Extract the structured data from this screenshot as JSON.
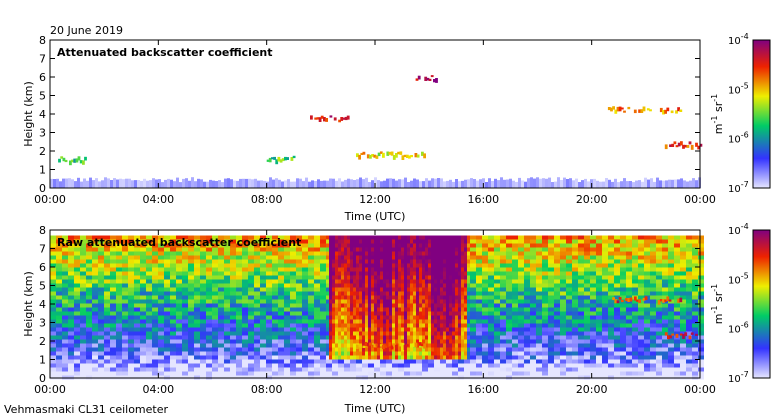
{
  "date_label": "20 June 2019",
  "instrument_label": "Vehmasmaki CL31 ceilometer",
  "colorbar": {
    "tick_labels": [
      "10",
      "10",
      "10",
      "10"
    ],
    "tick_exponents": [
      "-4",
      "-5",
      "-6",
      "-7"
    ],
    "label_base_1": "m",
    "label_exp_1": "-1",
    "label_base_2": " sr",
    "label_exp_2": "-1",
    "colors": [
      "#e6e6ff",
      "#3333ff",
      "#00cc66",
      "#eeee00",
      "#ee2200",
      "#800080"
    ]
  },
  "chart_data": [
    {
      "type": "heatmap",
      "title": "Attenuated backscatter coefficient",
      "xlabel": "Time (UTC)",
      "ylabel": "Height (km)",
      "xticks": [
        "00:00",
        "04:00",
        "08:00",
        "12:00",
        "16:00",
        "20:00",
        "00:00"
      ],
      "yticks": [
        "0",
        "1",
        "2",
        "3",
        "4",
        "5",
        "6",
        "7",
        "8"
      ],
      "xlim_hours": [
        0,
        24
      ],
      "ylim_km": [
        0,
        8
      ],
      "colorscale_range": [
        1e-07,
        0.0001
      ],
      "features": [
        {
          "name": "boundary layer",
          "t_start": 0,
          "t_end": 24,
          "top_km": 0.45,
          "log_value": -6.8
        },
        {
          "name": "cloud",
          "t_start": 0.3,
          "t_end": 1.4,
          "height_km": 1.5,
          "log_value": -5.8
        },
        {
          "name": "cloud",
          "t_start": 8.0,
          "t_end": 9.1,
          "height_km": 1.55,
          "log_value": -5.6
        },
        {
          "name": "cloud",
          "t_start": 11.3,
          "t_end": 13.8,
          "height_km": 1.75,
          "log_value": -5.2
        },
        {
          "name": "cloud",
          "t_start": 20.3,
          "t_end": 20.4,
          "height_km": 1.9,
          "log_value": -5.9
        },
        {
          "name": "cloud",
          "t_start": 20.6,
          "t_end": 23.3,
          "height_km": 4.2,
          "log_value": -4.8
        },
        {
          "name": "cloud",
          "t_start": 22.7,
          "t_end": 24.0,
          "height_km": 2.3,
          "log_value": -4.6
        },
        {
          "name": "cloud",
          "t_start": 13.5,
          "t_end": 14.3,
          "height_km": 5.9,
          "log_value": -4.2
        },
        {
          "name": "cloud",
          "t_start": 9.6,
          "t_end": 11.0,
          "height_km": 3.7,
          "log_value": -4.5
        }
      ]
    },
    {
      "type": "heatmap",
      "title": "Raw attenuated backscatter coefficient",
      "xlabel": "Time (UTC)",
      "ylabel": "Height (km)",
      "xticks": [
        "00:00",
        "04:00",
        "08:00",
        "12:00",
        "16:00",
        "20:00",
        "00:00"
      ],
      "yticks": [
        "0",
        "1",
        "2",
        "3",
        "4",
        "5",
        "6",
        "7",
        "8"
      ],
      "xlim_hours": [
        0,
        24
      ],
      "ylim_km": [
        0,
        8
      ],
      "colorscale_range": [
        1e-07,
        0.0001
      ],
      "features": [
        {
          "name": "noise gradient",
          "t_start": 0,
          "t_end": 24,
          "top_km": 7.7,
          "log_value": -5.5
        },
        {
          "name": "solar noise",
          "t_start": 10.3,
          "t_end": 15.3,
          "top_km": 7.7,
          "log_value": -4.5
        },
        {
          "name": "cloud",
          "t_start": 11.3,
          "t_end": 13.8,
          "height_km": 1.75,
          "log_value": -4.8
        },
        {
          "name": "cloud",
          "t_start": 20.6,
          "t_end": 23.3,
          "height_km": 4.2,
          "log_value": -4.6
        },
        {
          "name": "cloud",
          "t_start": 22.7,
          "t_end": 24.0,
          "height_km": 2.3,
          "log_value": -4.5
        }
      ]
    }
  ]
}
